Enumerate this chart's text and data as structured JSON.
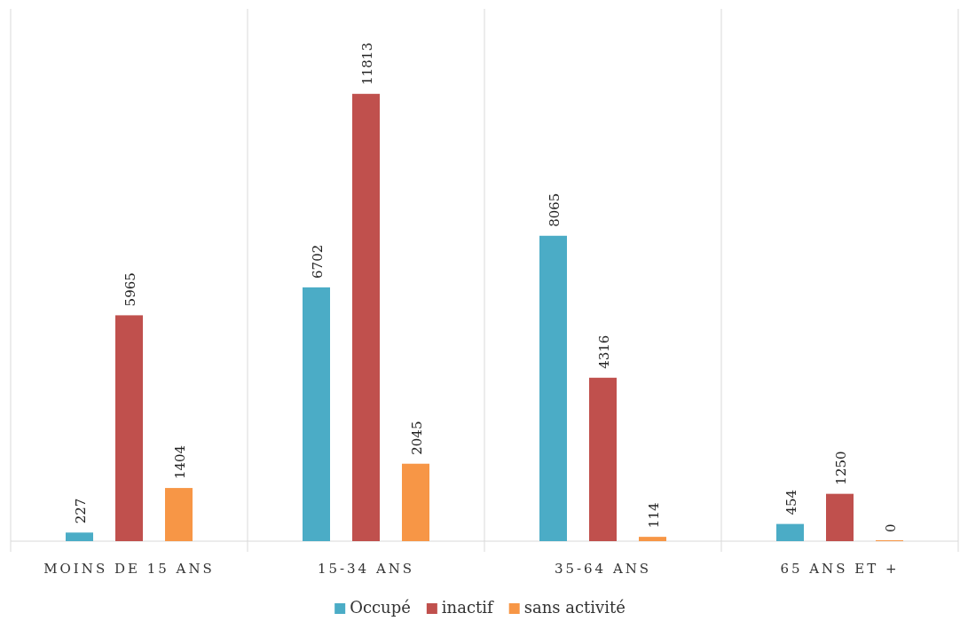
{
  "chart_data": {
    "type": "bar",
    "categories": [
      "MOINS DE 15 ANS",
      "15-34 ANS",
      "35-64 ANS",
      "65 ANS ET +"
    ],
    "series": [
      {
        "name": "Occupé",
        "color": "#4bacc6",
        "values": [
          227,
          6702,
          8065,
          454
        ]
      },
      {
        "name": "inactif",
        "color": "#c0504d",
        "values": [
          5965,
          11813,
          4316,
          1250
        ]
      },
      {
        "name": "sans activité",
        "color": "#f79646",
        "values": [
          1404,
          2045,
          114,
          0
        ]
      }
    ],
    "data_labels": true,
    "grid": "x",
    "legend": "bottom"
  }
}
